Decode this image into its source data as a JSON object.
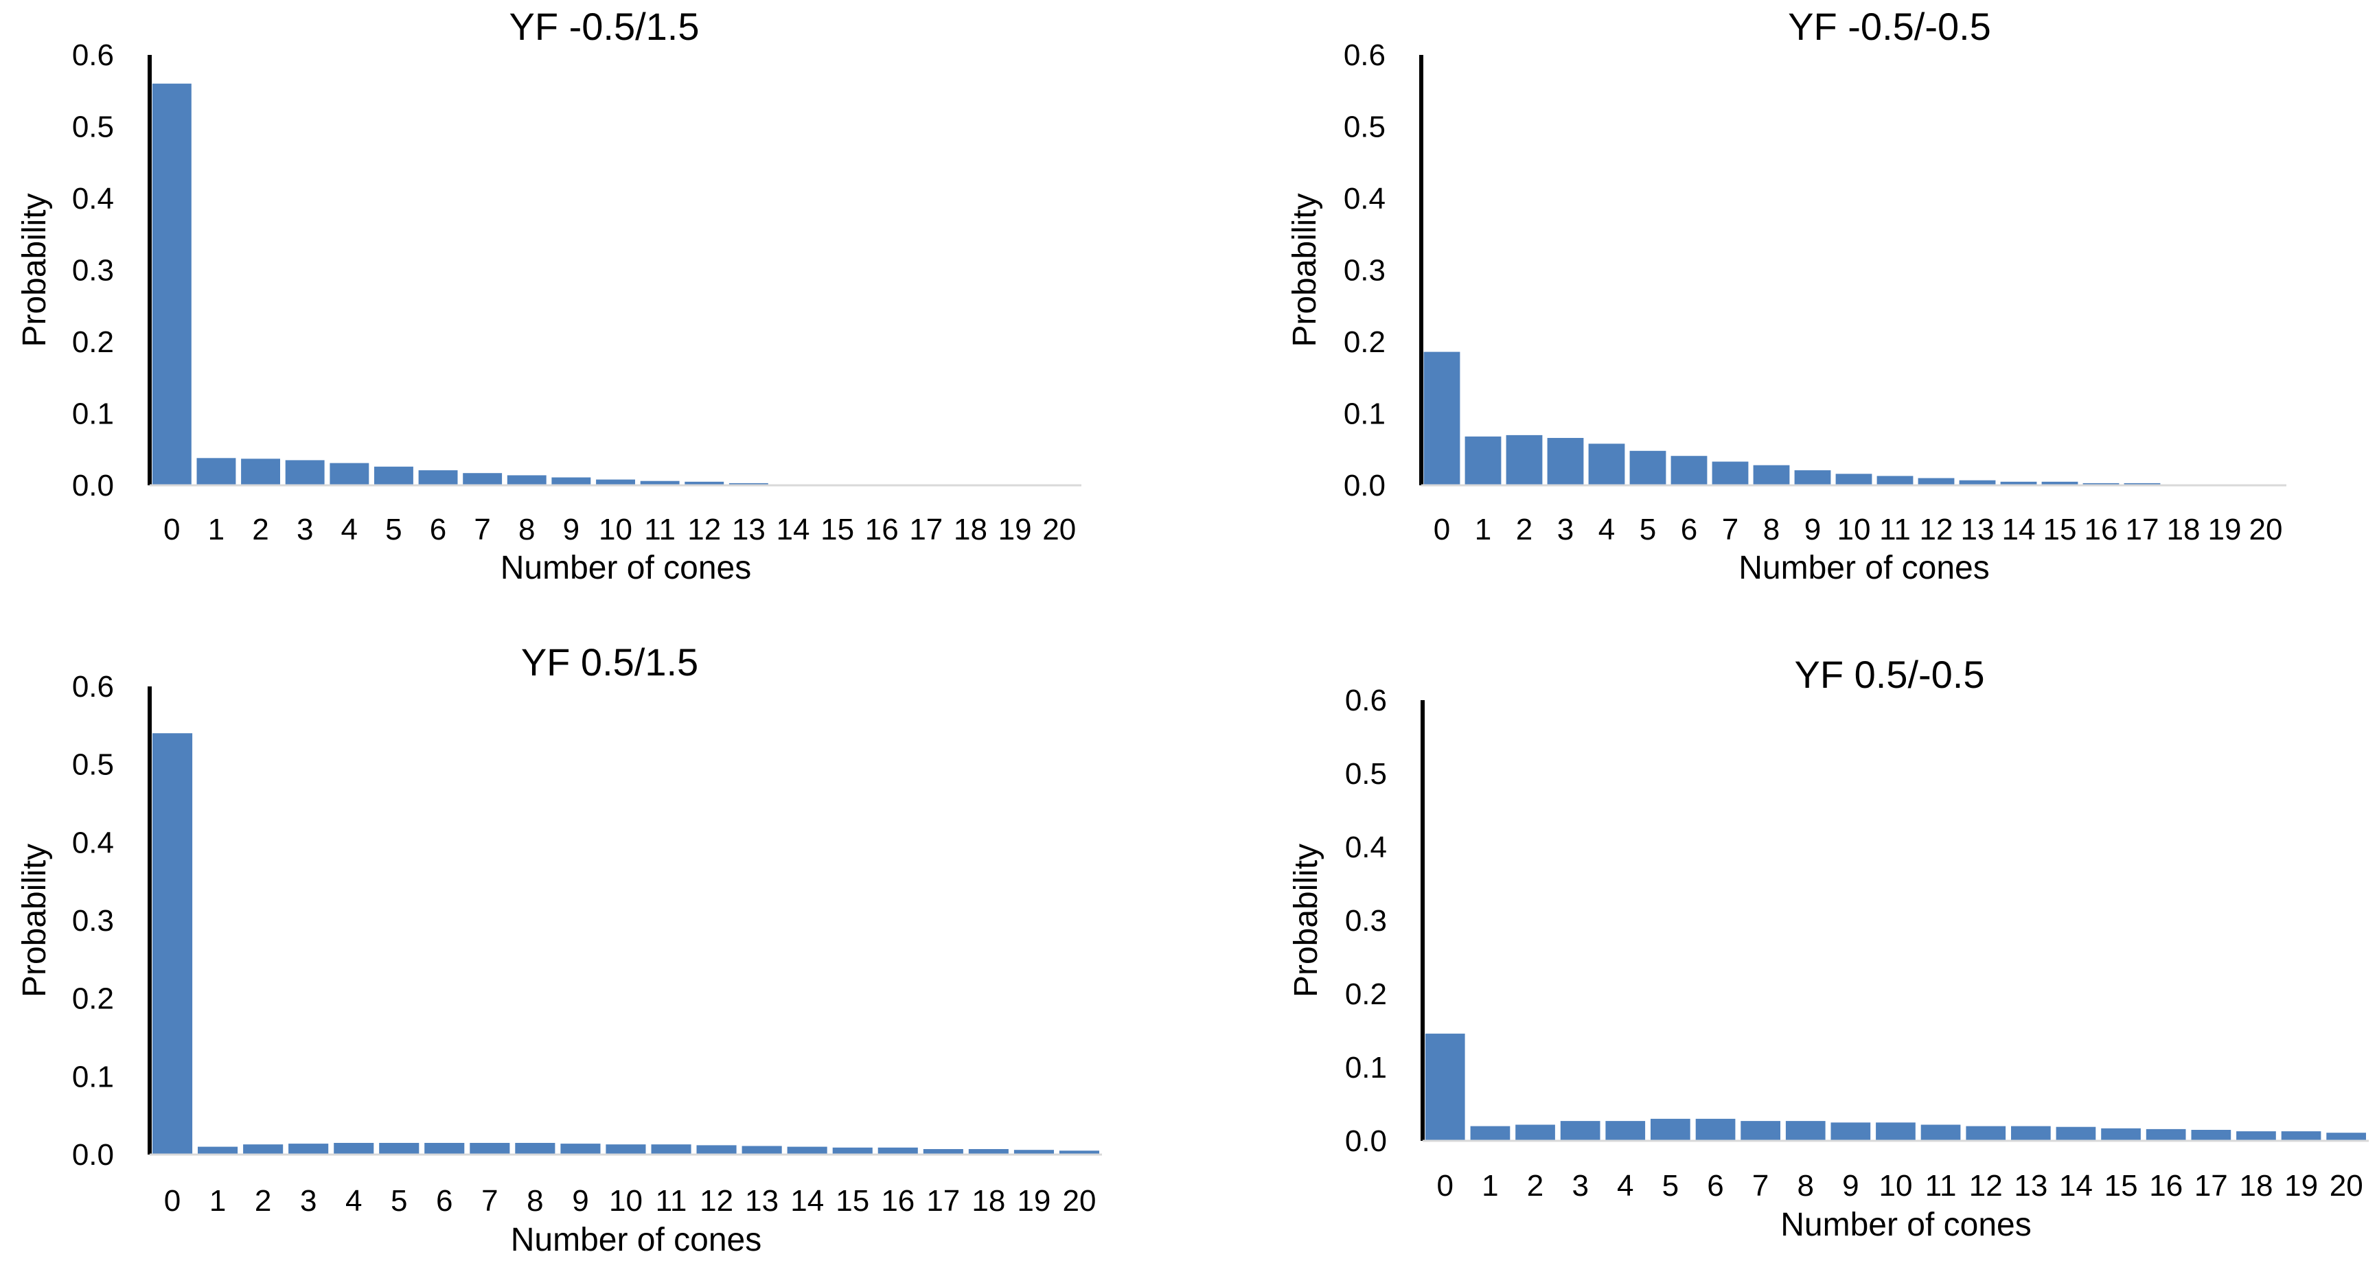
{
  "chart_data": [
    {
      "type": "bar",
      "title": "YF -0.5/1.5",
      "xlabel": "Number of cones",
      "ylabel": "Probability",
      "ylim": [
        0,
        0.6
      ],
      "yticks": [
        "0.0",
        "0.1",
        "0.2",
        "0.3",
        "0.4",
        "0.5",
        "0.6"
      ],
      "categories": [
        "0",
        "1",
        "2",
        "3",
        "4",
        "5",
        "6",
        "7",
        "8",
        "9",
        "10",
        "11",
        "12",
        "13",
        "14",
        "15",
        "16",
        "17",
        "18",
        "19",
        "20"
      ],
      "values": [
        0.56,
        0.038,
        0.037,
        0.035,
        0.031,
        0.026,
        0.021,
        0.017,
        0.014,
        0.011,
        0.008,
        0.006,
        0.005,
        0.003,
        0.0,
        0.0,
        0.0,
        0.0,
        0.0,
        0.0,
        0.0
      ],
      "bar_color": "#4f81bd",
      "grid": false
    },
    {
      "type": "bar",
      "title": "YF -0.5/-0.5",
      "xlabel": "Number of cones",
      "ylabel": "Probability",
      "ylim": [
        0,
        0.6
      ],
      "yticks": [
        "0.0",
        "0.1",
        "0.2",
        "0.3",
        "0.4",
        "0.5",
        "0.6"
      ],
      "categories": [
        "0",
        "1",
        "2",
        "3",
        "4",
        "5",
        "6",
        "7",
        "8",
        "9",
        "10",
        "11",
        "12",
        "13",
        "14",
        "15",
        "16",
        "17",
        "18",
        "19",
        "20"
      ],
      "values": [
        0.186,
        0.068,
        0.07,
        0.066,
        0.058,
        0.048,
        0.041,
        0.033,
        0.028,
        0.021,
        0.016,
        0.013,
        0.01,
        0.007,
        0.005,
        0.005,
        0.003,
        0.003,
        0.0,
        0.0,
        0.0
      ],
      "bar_color": "#4f81bd",
      "grid": false
    },
    {
      "type": "bar",
      "title": "YF 0.5/1.5",
      "xlabel": "Number of cones",
      "ylabel": "Probability",
      "ylim": [
        0,
        0.6
      ],
      "yticks": [
        "0.0",
        "0.1",
        "0.2",
        "0.3",
        "0.4",
        "0.5",
        "0.6"
      ],
      "categories": [
        "0",
        "1",
        "2",
        "3",
        "4",
        "5",
        "6",
        "7",
        "8",
        "9",
        "10",
        "11",
        "12",
        "13",
        "14",
        "15",
        "16",
        "17",
        "18",
        "19",
        "20"
      ],
      "values": [
        0.54,
        0.01,
        0.013,
        0.014,
        0.015,
        0.015,
        0.015,
        0.015,
        0.015,
        0.014,
        0.013,
        0.013,
        0.012,
        0.011,
        0.01,
        0.009,
        0.009,
        0.007,
        0.007,
        0.006,
        0.005
      ],
      "bar_color": "#4f81bd",
      "grid": false
    },
    {
      "type": "bar",
      "title": "YF 0.5/-0.5",
      "xlabel": "Number of cones",
      "ylabel": "Probability",
      "ylim": [
        0,
        0.6
      ],
      "yticks": [
        "0.0",
        "0.1",
        "0.2",
        "0.3",
        "0.4",
        "0.5",
        "0.6"
      ],
      "categories": [
        "0",
        "1",
        "2",
        "3",
        "4",
        "5",
        "6",
        "7",
        "8",
        "9",
        "10",
        "11",
        "12",
        "13",
        "14",
        "15",
        "16",
        "17",
        "18",
        "19",
        "20"
      ],
      "values": [
        0.146,
        0.02,
        0.022,
        0.027,
        0.027,
        0.03,
        0.03,
        0.027,
        0.027,
        0.025,
        0.025,
        0.022,
        0.02,
        0.02,
        0.019,
        0.017,
        0.016,
        0.015,
        0.013,
        0.013,
        0.011
      ],
      "bar_color": "#4f81bd",
      "grid": false
    }
  ]
}
